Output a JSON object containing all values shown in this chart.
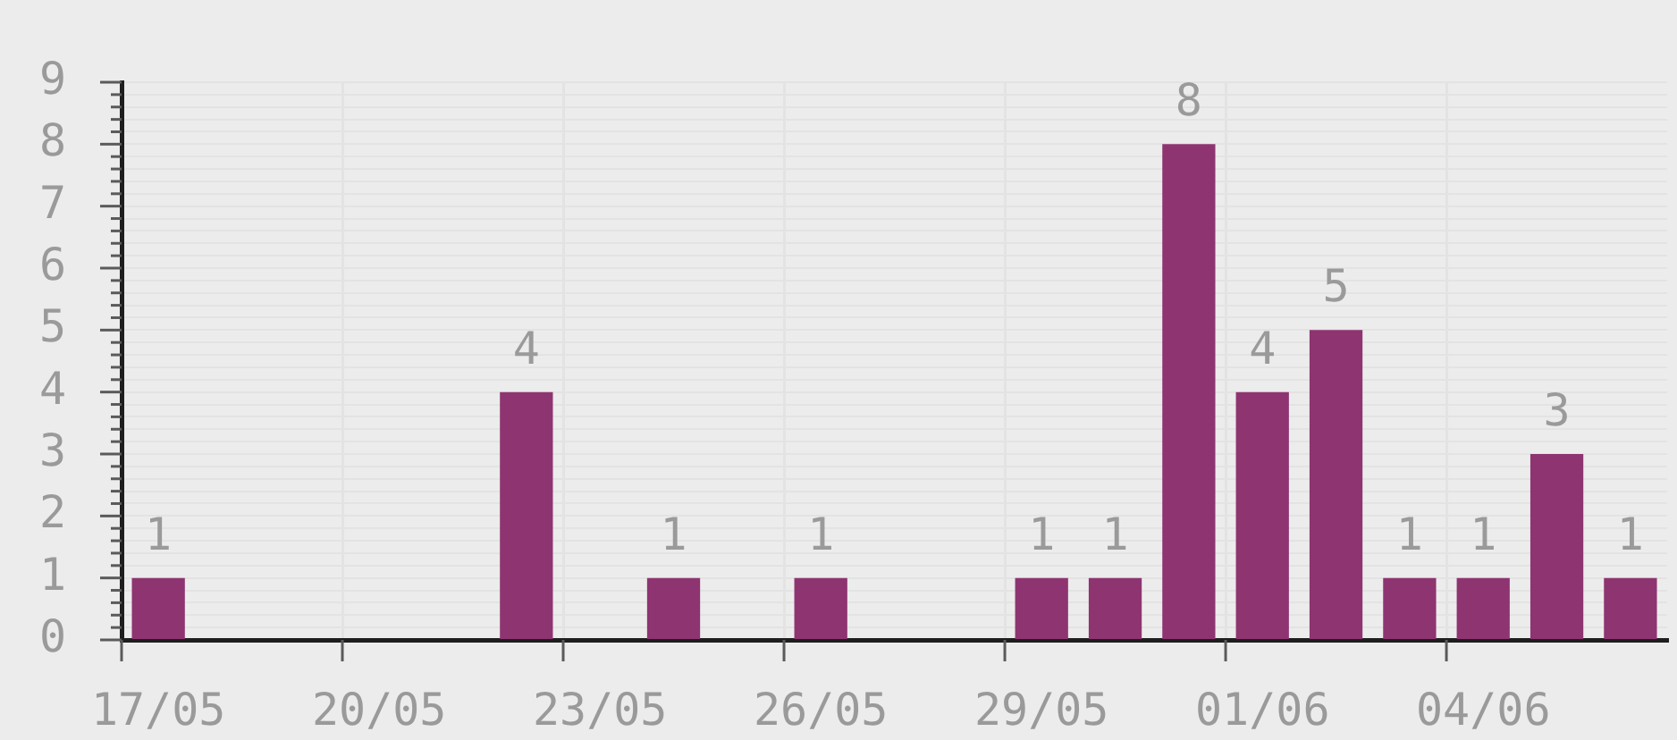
{
  "chart_data": {
    "type": "bar",
    "categories": [
      "17/05",
      null,
      null,
      "20/05",
      null,
      null,
      "23/05",
      null,
      null,
      "26/05",
      null,
      null,
      "29/05",
      null,
      null,
      "01/06",
      null,
      null,
      "04/06",
      null,
      null
    ],
    "values": [
      1,
      null,
      null,
      null,
      null,
      4,
      null,
      1,
      null,
      1,
      null,
      null,
      1,
      1,
      8,
      4,
      5,
      1,
      1,
      3,
      1
    ],
    "color": "#8e3471",
    "ylim": [
      0,
      9
    ],
    "yticks": [
      0,
      {
        "value": 0.2,
        "label": null
      },
      {
        "value": 0.4,
        "label": null
      },
      {
        "value": 0.6,
        "label": null
      },
      {
        "value": 0.8,
        "label": null
      },
      1,
      {
        "value": 1.2,
        "label": null
      },
      {
        "value": 1.4,
        "label": null
      },
      {
        "value": 1.6,
        "label": null
      },
      {
        "value": 1.8,
        "label": null
      },
      2,
      {
        "value": 2.2,
        "label": null
      },
      {
        "value": 2.4,
        "label": null
      },
      {
        "value": 2.6,
        "label": null
      },
      {
        "value": 2.8,
        "label": null
      },
      3,
      {
        "value": 3.2,
        "label": null
      },
      {
        "value": 3.4,
        "label": null
      },
      {
        "value": 3.6,
        "label": null
      },
      {
        "value": 3.8,
        "label": null
      },
      4,
      {
        "value": 4.2,
        "label": null
      },
      {
        "value": 4.4,
        "label": null
      },
      {
        "value": 4.6,
        "label": null
      },
      {
        "value": 4.8,
        "label": null
      },
      5,
      {
        "value": 5.2,
        "label": null
      },
      {
        "value": 5.4,
        "label": null
      },
      {
        "value": 5.6,
        "label": null
      },
      {
        "value": 5.8,
        "label": null
      },
      6,
      {
        "value": 6.2,
        "label": null
      },
      {
        "value": 6.4,
        "label": null
      },
      {
        "value": 6.6,
        "label": null
      },
      {
        "value": 6.8,
        "label": null
      },
      7,
      {
        "value": 7.2,
        "label": null
      },
      {
        "value": 7.4,
        "label": null
      },
      {
        "value": 7.6,
        "label": null
      },
      {
        "value": 7.8,
        "label": null
      },
      8,
      {
        "value": 8.2,
        "label": null
      },
      {
        "value": 8.4,
        "label": null
      },
      {
        "value": 8.6,
        "label": null
      },
      {
        "value": 8.8,
        "label": null
      },
      9
    ],
    "grid": true,
    "data_labels": true
  }
}
